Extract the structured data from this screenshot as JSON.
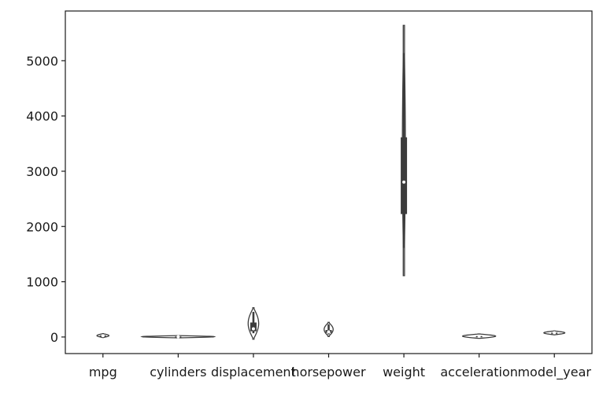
{
  "chart_data": {
    "type": "violin",
    "categories": [
      "mpg",
      "cylinders",
      "displacement",
      "horsepower",
      "weight",
      "acceleration",
      "model_year"
    ],
    "ylim": [
      -300,
      5900
    ],
    "yticks": [
      0,
      1000,
      2000,
      3000,
      4000,
      5000
    ],
    "grid": false,
    "series": [
      {
        "category": "mpg",
        "min": 9,
        "q1": 17.5,
        "median": 23,
        "q3": 29,
        "max": 46.6,
        "vmin": -10,
        "vmax": 60,
        "halfwidth": 0.08
      },
      {
        "category": "cylinders",
        "min": 3,
        "q1": 4,
        "median": 4,
        "q3": 8,
        "max": 8,
        "vmin": -15,
        "vmax": 25,
        "halfwidth": 0.48
      },
      {
        "category": "displacement",
        "min": 68,
        "q1": 104,
        "median": 148,
        "q3": 262,
        "max": 455,
        "vmin": -40,
        "vmax": 530,
        "halfwidth": 0.07
      },
      {
        "category": "horsepower",
        "min": 46,
        "q1": 75,
        "median": 93,
        "q3": 126,
        "max": 230,
        "vmin": 10,
        "vmax": 265,
        "halfwidth": 0.06
      },
      {
        "category": "weight",
        "min": 1613,
        "q1": 2225,
        "median": 2803,
        "q3": 3614,
        "max": 5140,
        "vmin": 1110,
        "vmax": 5640,
        "halfwidth": 0.02
      },
      {
        "category": "acceleration",
        "min": 8,
        "q1": 13.8,
        "median": 15.5,
        "q3": 17.2,
        "max": 24.8,
        "vmin": -25,
        "vmax": 55,
        "halfwidth": 0.22
      },
      {
        "category": "model_year",
        "min": 70,
        "q1": 73,
        "median": 76,
        "q3": 79,
        "max": 82,
        "vmin": 40,
        "vmax": 110,
        "halfwidth": 0.14
      }
    ],
    "colors": {
      "edge": "#3c3c3c",
      "fill": "#ffffff",
      "box": "#3c3c3c",
      "median": "#ffffff"
    }
  }
}
